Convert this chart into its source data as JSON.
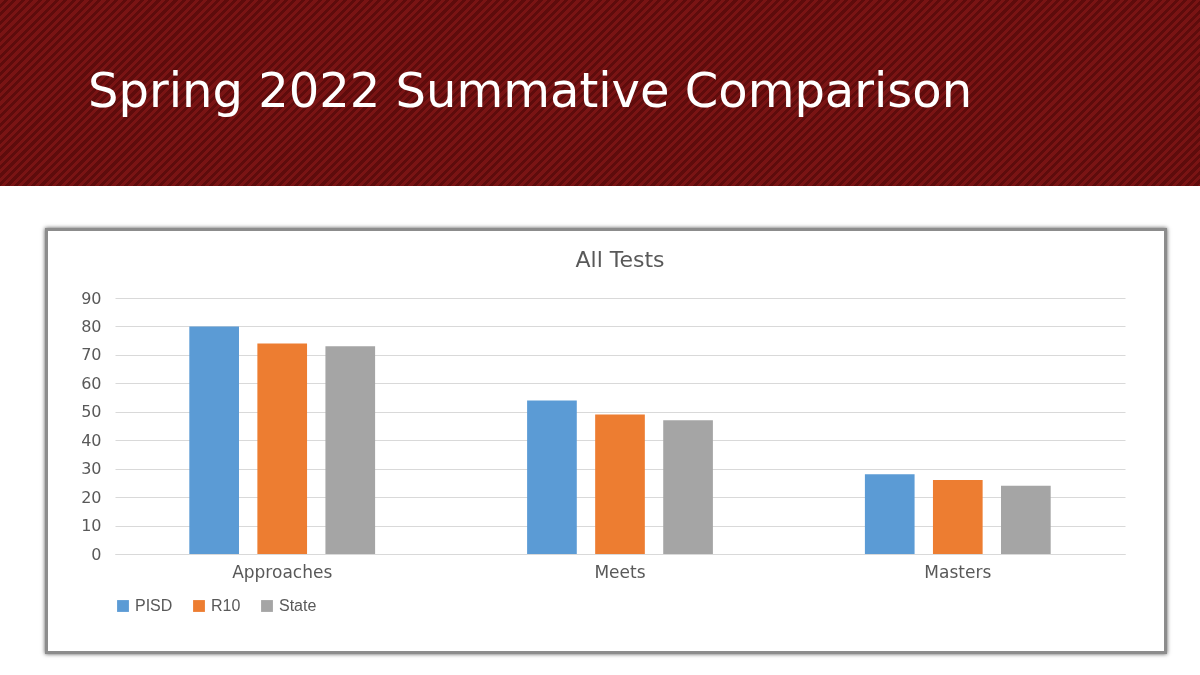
{
  "chart_data": {
    "type": "bar",
    "title": "Spring 2022 Summative Comparison",
    "subtitle": "All Tests",
    "categories": [
      "Approaches",
      "Meets",
      "Masters"
    ],
    "series": [
      {
        "name": "PISD",
        "color": "#5b9bd5",
        "values": [
          80,
          54,
          28
        ]
      },
      {
        "name": "R10",
        "color": "#ed7d31",
        "values": [
          74,
          49,
          26
        ]
      },
      {
        "name": "State",
        "color": "#a5a5a5",
        "values": [
          73,
          47,
          24
        ]
      }
    ],
    "ylim": [
      0,
      90
    ],
    "yticks": [
      0,
      10,
      20,
      30,
      40,
      50,
      60,
      70,
      80,
      90
    ],
    "grid": "y",
    "legend": "bottom"
  }
}
